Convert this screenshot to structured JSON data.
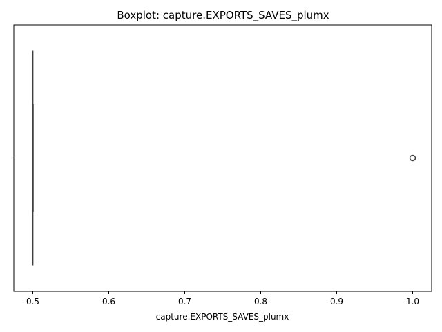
{
  "chart_data": {
    "type": "boxplot",
    "title": "Boxplot: capture.EXPORTS_SAVES_plumx",
    "xlabel": "capture.EXPORTS_SAVES_plumx",
    "ylabel": "",
    "xlim": [
      0.475,
      1.025
    ],
    "xticks": [
      0.5,
      0.6,
      0.7,
      0.8,
      0.9,
      1.0
    ],
    "xtick_labels": [
      "0.5",
      "0.6",
      "0.7",
      "0.8",
      "0.9",
      "1.0"
    ],
    "orientation": "horizontal",
    "grid": false,
    "box": {
      "whisker_low": 0.5,
      "q1": 0.5,
      "median": 0.5,
      "q3": 0.5,
      "whisker_high": 0.5
    },
    "outliers": [
      1.0
    ],
    "colors": {
      "box_edge": "#3f3f3f",
      "outlier_edge": "#3f3f3f",
      "axis": "#000000"
    }
  }
}
